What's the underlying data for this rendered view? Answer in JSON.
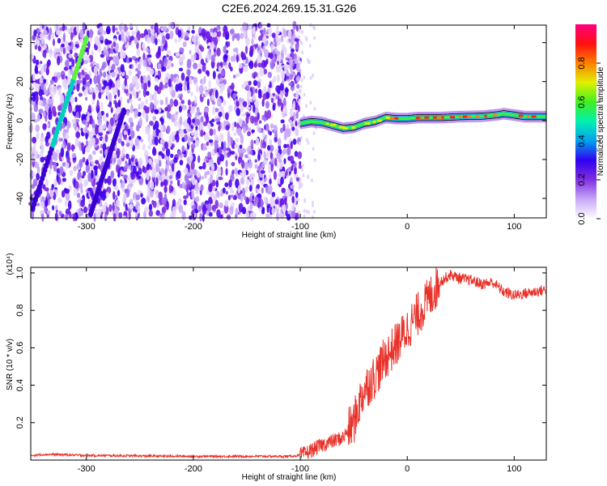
{
  "title": "C2E6.2024.269.15.31.G26",
  "chart_data": [
    {
      "type": "heatmap",
      "title": "C2E6.2024.269.15.31.G26",
      "xlabel": "Height of straight line (km)",
      "ylabel": "Frequency (Hz)",
      "xlim": [
        -352,
        130
      ],
      "ylim": [
        -50,
        49
      ],
      "xticks": [
        -300,
        -200,
        -100,
        0,
        100
      ],
      "yticks": [
        -40,
        -20,
        0,
        20,
        40
      ],
      "colorbar": {
        "label": "Normalized spectral amplitude",
        "range": [
          0,
          1
        ],
        "ticks": [
          "0.0",
          "0.2",
          "0.4",
          "0.6",
          "0.8"
        ],
        "colors": [
          "#ffffff",
          "#c8a8f8",
          "#8030e0",
          "#3000f0",
          "#00a0f0",
          "#00f0b0",
          "#40f020",
          "#e0f000",
          "#ff8000",
          "#ff1010",
          "#ff0080"
        ]
      },
      "noise_region_x": [
        -352,
        -100
      ],
      "faint_noise_x": [
        -102,
        -85
      ],
      "streaks": [
        {
          "x": [
            -350,
            -300
          ],
          "y": [
            -45,
            42
          ]
        },
        {
          "x": [
            -296,
            -265
          ],
          "y": [
            -48,
            5
          ]
        }
      ],
      "signal_track": {
        "x": [
          -100,
          -90,
          -80,
          -70,
          -60,
          -50,
          -40,
          -30,
          -20,
          -10,
          0,
          10,
          30,
          50,
          70,
          85,
          90,
          100,
          110,
          130
        ],
        "y": [
          -1.5,
          -0.5,
          -1,
          -2.5,
          -4,
          -3.5,
          -1.5,
          -0.5,
          1.5,
          1,
          1,
          1.5,
          1.5,
          2,
          2.2,
          3,
          3.5,
          2.8,
          2,
          2
        ]
      }
    },
    {
      "type": "line",
      "xlabel": "Height of straight line (km)",
      "ylabel": "SNR (10 * v/v)",
      "scale_label": "(x10⁴)",
      "xlim": [
        -352,
        130
      ],
      "ylim": [
        0,
        1.03
      ],
      "xticks": [
        -300,
        -200,
        -100,
        0,
        100
      ],
      "yticks": [
        "0.2",
        "0.4",
        "0.6",
        "0.8",
        "1.0"
      ],
      "series": [
        {
          "color": "#e8322a",
          "x": [
            -352,
            -340,
            -330,
            -300,
            -250,
            -200,
            -150,
            -110,
            -100,
            -90,
            -80,
            -70,
            -60,
            -50,
            -45,
            -40,
            -30,
            -20,
            -10,
            0,
            10,
            20,
            30,
            40,
            50,
            60,
            70,
            80,
            90,
            100,
            110,
            120,
            130
          ],
          "y": [
            0.025,
            0.03,
            0.03,
            0.025,
            0.022,
            0.02,
            0.02,
            0.02,
            0.025,
            0.05,
            0.08,
            0.1,
            0.12,
            0.2,
            0.3,
            0.38,
            0.45,
            0.55,
            0.62,
            0.7,
            0.78,
            0.86,
            0.95,
            0.99,
            0.97,
            0.96,
            0.94,
            0.95,
            0.9,
            0.88,
            0.89,
            0.9,
            0.91
          ]
        }
      ]
    }
  ]
}
